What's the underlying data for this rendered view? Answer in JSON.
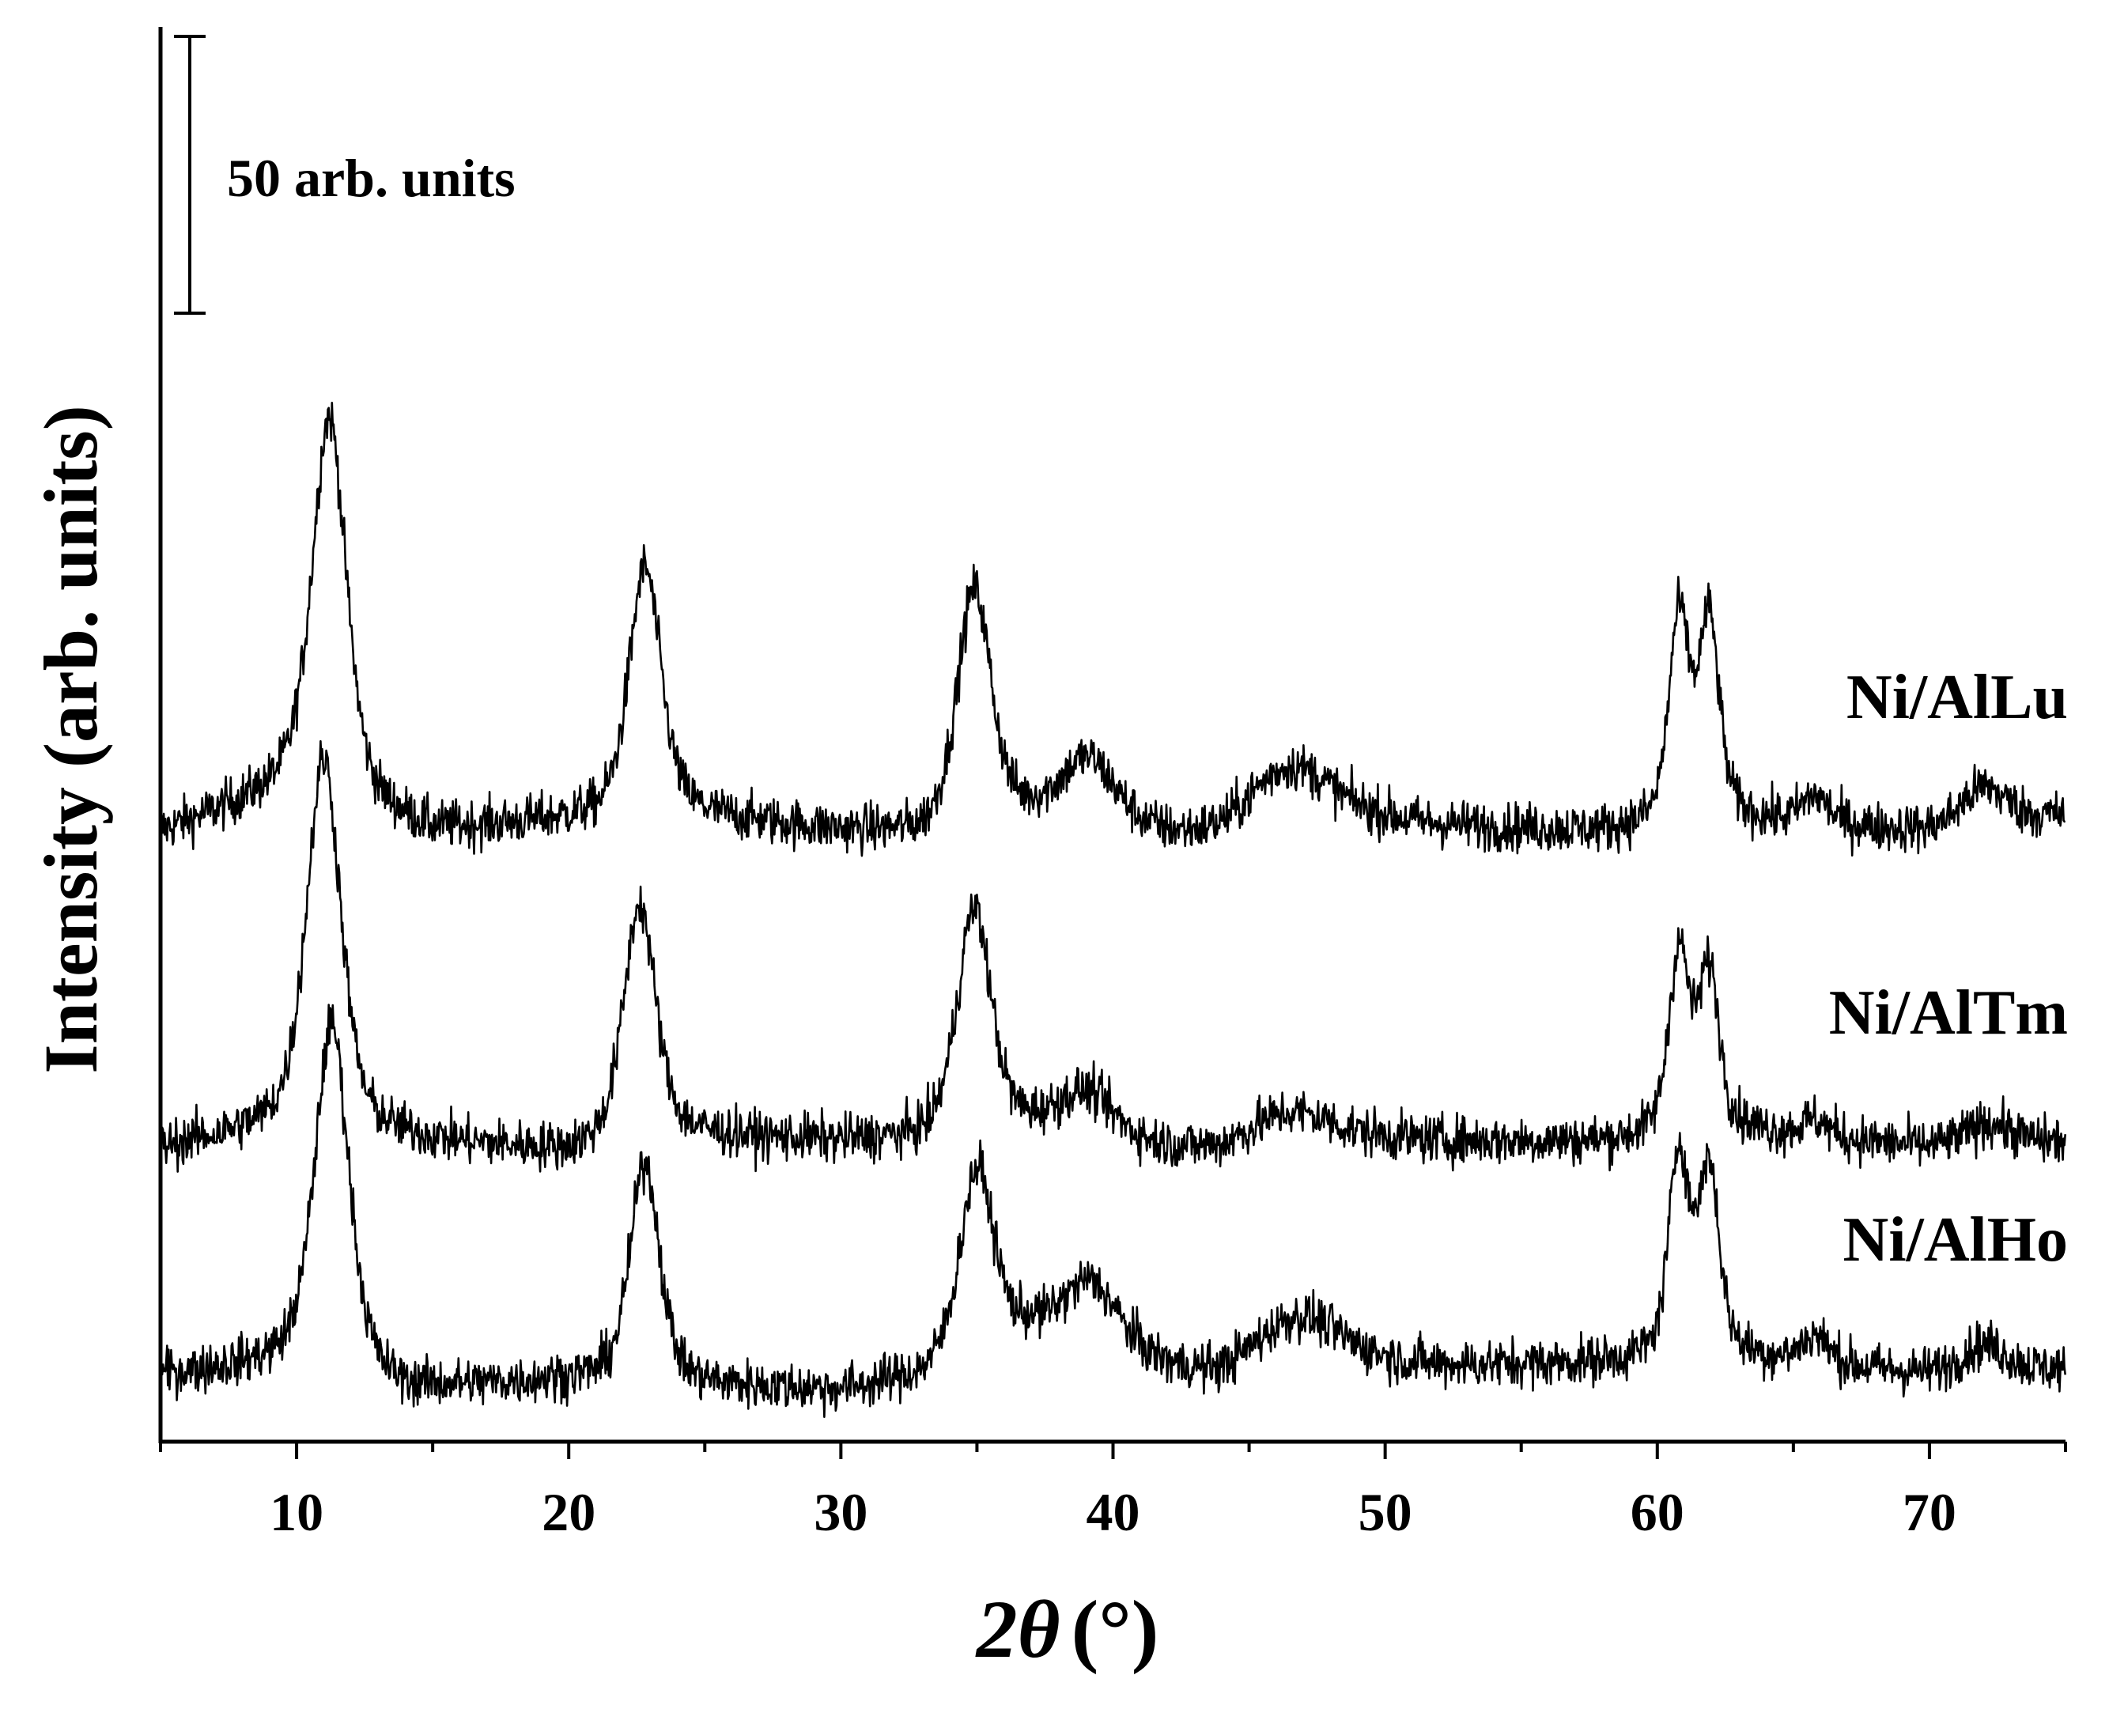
{
  "chart_data": {
    "type": "line",
    "xlabel_prefix": "2θ",
    "xlabel_suffix": "(°)",
    "ylabel": "Intensity (arb. units)",
    "xlim": [
      5,
      75
    ],
    "x_ticks": [
      10,
      20,
      30,
      40,
      50,
      60,
      70
    ],
    "y_axis_ticks_shown": false,
    "scale_bar": {
      "label": "50 arb. units",
      "value": 50
    },
    "grid": false,
    "legend": "labels placed at right end of each trace",
    "color": "#000000",
    "baseline_units": 0,
    "noise_units": 2.2,
    "series": [
      {
        "name": "Ni/AlLu",
        "offset": 102,
        "baseline": [
          [
            5,
            4
          ],
          [
            10,
            12
          ],
          [
            15,
            4
          ],
          [
            20,
            6
          ],
          [
            24,
            7
          ],
          [
            30,
            4
          ],
          [
            33,
            3
          ],
          [
            37,
            6
          ],
          [
            44,
            1
          ],
          [
            50,
            5
          ],
          [
            58,
            4
          ],
          [
            63,
            6
          ],
          [
            70,
            4
          ],
          [
            75,
            7
          ]
        ],
        "peaks": [
          {
            "center": 11.2,
            "height": 69,
            "width": 0.75
          },
          {
            "center": 22.8,
            "height": 45,
            "width": 0.7
          },
          {
            "center": 34.9,
            "height": 43,
            "width": 0.75
          },
          {
            "center": 39.1,
            "height": 12,
            "width": 1.2
          },
          {
            "center": 46.5,
            "height": 13,
            "width": 2.0
          },
          {
            "center": 60.8,
            "height": 37,
            "width": 0.45
          },
          {
            "center": 61.9,
            "height": 36,
            "width": 0.45
          },
          {
            "center": 65.8,
            "height": 5,
            "width": 0.6
          },
          {
            "center": 72.0,
            "height": 7,
            "width": 1.0
          }
        ]
      },
      {
        "name": "Ni/AlTm",
        "offset": 44,
        "baseline": [
          [
            5,
            5
          ],
          [
            10,
            9
          ],
          [
            15,
            6
          ],
          [
            20,
            4
          ],
          [
            24,
            7
          ],
          [
            30,
            6
          ],
          [
            33,
            6
          ],
          [
            37,
            8
          ],
          [
            44,
            3
          ],
          [
            50,
            6
          ],
          [
            58,
            6
          ],
          [
            63,
            8
          ],
          [
            70,
            5
          ],
          [
            75,
            6
          ]
        ],
        "peaks": [
          {
            "center": 11.0,
            "height": 67,
            "width": 0.75
          },
          {
            "center": 22.6,
            "height": 43,
            "width": 0.7
          },
          {
            "center": 34.9,
            "height": 41,
            "width": 0.75
          },
          {
            "center": 39.0,
            "height": 8,
            "width": 1.2
          },
          {
            "center": 46.5,
            "height": 7,
            "width": 2.0
          },
          {
            "center": 60.8,
            "height": 33,
            "width": 0.45
          },
          {
            "center": 61.9,
            "height": 29,
            "width": 0.45
          },
          {
            "center": 65.8,
            "height": 3,
            "width": 0.6
          },
          {
            "center": 72.2,
            "height": 4,
            "width": 1.0
          }
        ]
      },
      {
        "name": "Ni/AlHo",
        "offset": 0,
        "baseline": [
          [
            5,
            8
          ],
          [
            10,
            10
          ],
          [
            14,
            5
          ],
          [
            20,
            7
          ],
          [
            24,
            6
          ],
          [
            30,
            5
          ],
          [
            33,
            7
          ],
          [
            37,
            15
          ],
          [
            44,
            6
          ],
          [
            50,
            9
          ],
          [
            58,
            10
          ],
          [
            63,
            11
          ],
          [
            70,
            8
          ],
          [
            75,
            9
          ]
        ],
        "peaks": [
          {
            "center": 11.3,
            "height": 63,
            "width": 0.75
          },
          {
            "center": 22.8,
            "height": 40,
            "width": 0.65
          },
          {
            "center": 35.0,
            "height": 34,
            "width": 0.75
          },
          {
            "center": 39.2,
            "height": 12,
            "width": 1.2
          },
          {
            "center": 46.8,
            "height": 11,
            "width": 2.0
          },
          {
            "center": 60.8,
            "height": 37,
            "width": 0.45
          },
          {
            "center": 61.9,
            "height": 34,
            "width": 0.45
          },
          {
            "center": 65.8,
            "height": 5,
            "width": 0.6
          },
          {
            "center": 72.0,
            "height": 5,
            "width": 1.0
          }
        ]
      }
    ]
  }
}
